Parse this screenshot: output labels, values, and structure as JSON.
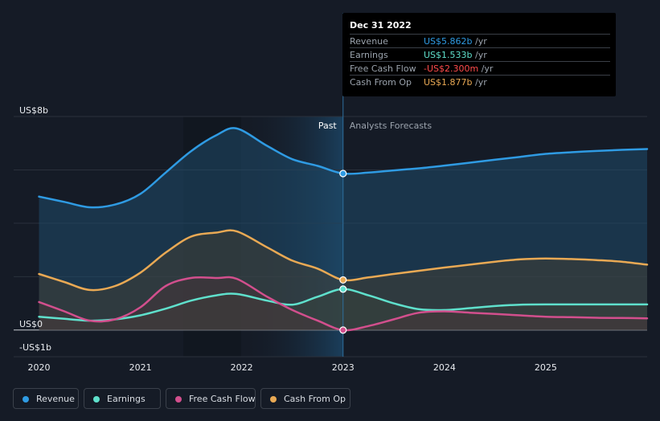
{
  "chart_data": {
    "type": "area",
    "title": "",
    "y_axis": {
      "unit": "US$b",
      "ylim": [
        -1,
        8
      ],
      "tick_labels": [
        "US$8b",
        "US$0",
        "-US$1b"
      ],
      "tick_values": [
        8,
        0,
        -1
      ]
    },
    "x_axis": {
      "tick_labels": [
        "2020",
        "2021",
        "2022",
        "2023",
        "2024",
        "2025"
      ],
      "tick_values": [
        2020,
        2021,
        2022,
        2023,
        2024,
        2025
      ],
      "xlim": [
        2019.75,
        2026.0
      ]
    },
    "divider_x": 2023.0,
    "region_labels": {
      "past": "Past",
      "forecast": "Analysts Forecasts"
    },
    "series": [
      {
        "name": "Revenue",
        "key": "revenue",
        "color": "#2f9be3",
        "fill": "#1f4a6a",
        "x": [
          2020.0,
          2020.25,
          2020.5,
          2020.75,
          2021.0,
          2021.25,
          2021.5,
          2021.75,
          2021.95,
          2022.25,
          2022.5,
          2022.75,
          2023.0,
          2023.25,
          2023.5,
          2023.75,
          2024.0,
          2024.25,
          2024.5,
          2024.75,
          2025.0,
          2025.25,
          2025.5,
          2025.75,
          2026.0
        ],
        "values": [
          5.0,
          4.8,
          4.6,
          4.7,
          5.1,
          5.9,
          6.7,
          7.3,
          7.55,
          6.9,
          6.4,
          6.15,
          5.862,
          5.9,
          5.98,
          6.06,
          6.16,
          6.27,
          6.38,
          6.49,
          6.6,
          6.66,
          6.71,
          6.75,
          6.78
        ]
      },
      {
        "name": "Earnings",
        "key": "earnings",
        "color": "#5fe0cc",
        "fill": "#2b4644",
        "x": [
          2020.0,
          2020.25,
          2020.5,
          2020.75,
          2021.0,
          2021.25,
          2021.5,
          2021.75,
          2021.95,
          2022.25,
          2022.5,
          2022.75,
          2023.0,
          2023.25,
          2023.5,
          2023.75,
          2024.0,
          2024.25,
          2024.5,
          2024.75,
          2025.0,
          2025.25,
          2025.5,
          2025.75,
          2026.0
        ],
        "values": [
          0.5,
          0.42,
          0.35,
          0.4,
          0.55,
          0.8,
          1.1,
          1.3,
          1.35,
          1.1,
          0.95,
          1.25,
          1.533,
          1.3,
          1.0,
          0.78,
          0.75,
          0.82,
          0.9,
          0.95,
          0.96,
          0.96,
          0.96,
          0.96,
          0.96
        ]
      },
      {
        "name": "Free Cash Flow",
        "key": "fcf",
        "color": "#d24f8d",
        "fill": "#4a2a40",
        "x": [
          2020.0,
          2020.25,
          2020.5,
          2020.75,
          2021.0,
          2021.25,
          2021.5,
          2021.75,
          2021.95,
          2022.25,
          2022.5,
          2022.75,
          2023.0,
          2023.25,
          2023.5,
          2023.75,
          2024.0,
          2024.25,
          2024.5,
          2024.75,
          2025.0,
          2025.25,
          2025.5,
          2025.75,
          2026.0
        ],
        "values": [
          1.05,
          0.7,
          0.35,
          0.4,
          0.85,
          1.65,
          1.95,
          1.95,
          1.92,
          1.25,
          0.75,
          0.35,
          -0.0023,
          0.15,
          0.4,
          0.65,
          0.7,
          0.65,
          0.6,
          0.55,
          0.5,
          0.48,
          0.46,
          0.45,
          0.44
        ]
      },
      {
        "name": "Cash From Op",
        "key": "cfo",
        "color": "#e9a954",
        "fill": "#4a4030",
        "x": [
          2020.0,
          2020.25,
          2020.5,
          2020.75,
          2021.0,
          2021.25,
          2021.5,
          2021.75,
          2021.95,
          2022.25,
          2022.5,
          2022.75,
          2023.0,
          2023.25,
          2023.5,
          2023.75,
          2024.0,
          2024.25,
          2024.5,
          2024.75,
          2025.0,
          2025.25,
          2025.5,
          2025.75,
          2026.0
        ],
        "values": [
          2.1,
          1.8,
          1.5,
          1.65,
          2.15,
          2.9,
          3.5,
          3.65,
          3.7,
          3.1,
          2.6,
          2.3,
          1.877,
          1.97,
          2.1,
          2.22,
          2.34,
          2.45,
          2.56,
          2.65,
          2.68,
          2.66,
          2.62,
          2.56,
          2.45
        ]
      }
    ],
    "highlight_points": [
      {
        "key": "revenue",
        "x": 2023.0,
        "y": 5.862
      },
      {
        "key": "earnings",
        "x": 2023.0,
        "y": 1.533
      },
      {
        "key": "fcf",
        "x": 2023.0,
        "y": -0.0023
      },
      {
        "key": "cfo",
        "x": 2023.0,
        "y": 1.877
      }
    ]
  },
  "tooltip": {
    "date": "Dec 31 2022",
    "unit": "/yr",
    "rows": [
      {
        "name": "Revenue",
        "value": "US$5.862b",
        "color": "#2f9be3"
      },
      {
        "name": "Earnings",
        "value": "US$1.533b",
        "color": "#5fe0cc"
      },
      {
        "name": "Free Cash Flow",
        "value": "-US$2.300m",
        "color": "#ff4b4b"
      },
      {
        "name": "Cash From Op",
        "value": "US$1.877b",
        "color": "#e9a954"
      }
    ]
  },
  "legend": [
    {
      "name": "Revenue",
      "color": "#2f9be3"
    },
    {
      "name": "Earnings",
      "color": "#5fe0cc"
    },
    {
      "name": "Free Cash Flow",
      "color": "#d24f8d"
    },
    {
      "name": "Cash From Op",
      "color": "#e9a954"
    }
  ]
}
